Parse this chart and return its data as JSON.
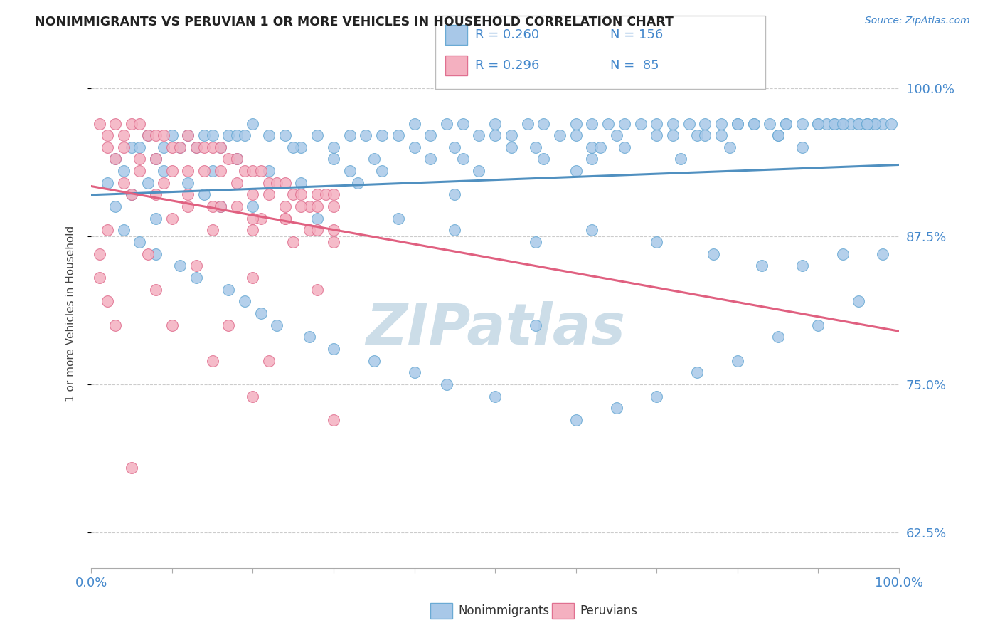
{
  "title": "NONIMMIGRANTS VS PERUVIAN 1 OR MORE VEHICLES IN HOUSEHOLD CORRELATION CHART",
  "source": "Source: ZipAtlas.com",
  "ylabel": "1 or more Vehicles in Household",
  "yticks": [
    "62.5%",
    "75.0%",
    "87.5%",
    "100.0%"
  ],
  "ytick_vals": [
    0.625,
    0.75,
    0.875,
    1.0
  ],
  "legend_blue_label": "Nonimmigrants",
  "legend_pink_label": "Peruvians",
  "R_blue": 0.26,
  "N_blue": 156,
  "R_pink": 0.296,
  "N_pink": 85,
  "blue_face": "#a8c8e8",
  "pink_face": "#f4b0c0",
  "blue_edge": "#6aaad4",
  "pink_edge": "#e07090",
  "blue_line": "#5090c0",
  "pink_line": "#e06080",
  "title_color": "#222222",
  "axis_color": "#4488cc",
  "watermark_color": "#ccdde8",
  "bg_color": "#ffffff",
  "blue_scatter_x": [
    0.02,
    0.03,
    0.04,
    0.05,
    0.06,
    0.07,
    0.08,
    0.09,
    0.1,
    0.11,
    0.12,
    0.13,
    0.14,
    0.15,
    0.16,
    0.17,
    0.18,
    0.19,
    0.2,
    0.22,
    0.24,
    0.26,
    0.28,
    0.3,
    0.32,
    0.34,
    0.36,
    0.38,
    0.4,
    0.42,
    0.44,
    0.46,
    0.48,
    0.5,
    0.52,
    0.54,
    0.56,
    0.58,
    0.6,
    0.62,
    0.64,
    0.66,
    0.68,
    0.7,
    0.72,
    0.74,
    0.76,
    0.78,
    0.8,
    0.82,
    0.84,
    0.86,
    0.88,
    0.9,
    0.91,
    0.92,
    0.93,
    0.94,
    0.95,
    0.96,
    0.97,
    0.98,
    0.99,
    0.03,
    0.05,
    0.07,
    0.09,
    0.12,
    0.15,
    0.18,
    0.25,
    0.3,
    0.35,
    0.4,
    0.45,
    0.5,
    0.55,
    0.6,
    0.65,
    0.7,
    0.75,
    0.8,
    0.85,
    0.9,
    0.95,
    0.97,
    0.04,
    0.08,
    0.14,
    0.22,
    0.32,
    0.42,
    0.52,
    0.62,
    0.72,
    0.82,
    0.92,
    0.06,
    0.16,
    0.26,
    0.36,
    0.46,
    0.56,
    0.66,
    0.76,
    0.86,
    0.96,
    0.08,
    0.2,
    0.33,
    0.48,
    0.63,
    0.78,
    0.93,
    0.11,
    0.28,
    0.45,
    0.62,
    0.79,
    0.96,
    0.13,
    0.38,
    0.6,
    0.85,
    0.17,
    0.45,
    0.73,
    0.19,
    0.55,
    0.88,
    0.21,
    0.62,
    0.23,
    0.7,
    0.27,
    0.77,
    0.3,
    0.83,
    0.35,
    0.88,
    0.4,
    0.93,
    0.44,
    0.98,
    0.5,
    0.55,
    0.6,
    0.65,
    0.7,
    0.75,
    0.8,
    0.85,
    0.9,
    0.95
  ],
  "blue_scatter_y": [
    0.92,
    0.94,
    0.93,
    0.95,
    0.95,
    0.96,
    0.94,
    0.95,
    0.96,
    0.95,
    0.96,
    0.95,
    0.96,
    0.96,
    0.95,
    0.96,
    0.96,
    0.96,
    0.97,
    0.96,
    0.96,
    0.95,
    0.96,
    0.95,
    0.96,
    0.96,
    0.96,
    0.96,
    0.97,
    0.96,
    0.97,
    0.97,
    0.96,
    0.97,
    0.96,
    0.97,
    0.97,
    0.96,
    0.97,
    0.97,
    0.97,
    0.97,
    0.97,
    0.97,
    0.97,
    0.97,
    0.97,
    0.97,
    0.97,
    0.97,
    0.97,
    0.97,
    0.97,
    0.97,
    0.97,
    0.97,
    0.97,
    0.97,
    0.97,
    0.97,
    0.97,
    0.97,
    0.97,
    0.9,
    0.91,
    0.92,
    0.93,
    0.92,
    0.93,
    0.94,
    0.95,
    0.94,
    0.94,
    0.95,
    0.95,
    0.96,
    0.95,
    0.96,
    0.96,
    0.96,
    0.96,
    0.97,
    0.96,
    0.97,
    0.97,
    0.97,
    0.88,
    0.89,
    0.91,
    0.93,
    0.93,
    0.94,
    0.95,
    0.95,
    0.96,
    0.97,
    0.97,
    0.87,
    0.9,
    0.92,
    0.93,
    0.94,
    0.94,
    0.95,
    0.96,
    0.97,
    0.97,
    0.86,
    0.9,
    0.92,
    0.93,
    0.95,
    0.96,
    0.97,
    0.85,
    0.89,
    0.91,
    0.94,
    0.95,
    0.97,
    0.84,
    0.89,
    0.93,
    0.96,
    0.83,
    0.88,
    0.94,
    0.82,
    0.87,
    0.95,
    0.81,
    0.88,
    0.8,
    0.87,
    0.79,
    0.86,
    0.78,
    0.85,
    0.77,
    0.85,
    0.76,
    0.86,
    0.75,
    0.86,
    0.74,
    0.8,
    0.72,
    0.73,
    0.74,
    0.76,
    0.77,
    0.79,
    0.8,
    0.82
  ],
  "pink_scatter_x": [
    0.01,
    0.02,
    0.03,
    0.04,
    0.05,
    0.06,
    0.07,
    0.08,
    0.09,
    0.1,
    0.11,
    0.12,
    0.13,
    0.14,
    0.15,
    0.16,
    0.17,
    0.18,
    0.19,
    0.2,
    0.21,
    0.22,
    0.23,
    0.24,
    0.25,
    0.26,
    0.27,
    0.28,
    0.29,
    0.3,
    0.02,
    0.04,
    0.06,
    0.08,
    0.1,
    0.12,
    0.14,
    0.16,
    0.18,
    0.2,
    0.22,
    0.24,
    0.26,
    0.28,
    0.3,
    0.03,
    0.06,
    0.09,
    0.12,
    0.15,
    0.18,
    0.21,
    0.24,
    0.27,
    0.3,
    0.04,
    0.08,
    0.12,
    0.16,
    0.2,
    0.24,
    0.28,
    0.05,
    0.1,
    0.15,
    0.2,
    0.25,
    0.3,
    0.02,
    0.07,
    0.13,
    0.2,
    0.28,
    0.01,
    0.08,
    0.17,
    0.01,
    0.1,
    0.22,
    0.02,
    0.15,
    0.3,
    0.03,
    0.2,
    0.05
  ],
  "pink_scatter_y": [
    0.97,
    0.96,
    0.97,
    0.96,
    0.97,
    0.97,
    0.96,
    0.96,
    0.96,
    0.95,
    0.95,
    0.96,
    0.95,
    0.95,
    0.95,
    0.95,
    0.94,
    0.94,
    0.93,
    0.93,
    0.93,
    0.92,
    0.92,
    0.92,
    0.91,
    0.91,
    0.9,
    0.91,
    0.91,
    0.91,
    0.95,
    0.95,
    0.94,
    0.94,
    0.93,
    0.93,
    0.93,
    0.93,
    0.92,
    0.91,
    0.91,
    0.9,
    0.9,
    0.9,
    0.9,
    0.94,
    0.93,
    0.92,
    0.91,
    0.9,
    0.9,
    0.89,
    0.89,
    0.88,
    0.88,
    0.92,
    0.91,
    0.9,
    0.9,
    0.89,
    0.89,
    0.88,
    0.91,
    0.89,
    0.88,
    0.88,
    0.87,
    0.87,
    0.88,
    0.86,
    0.85,
    0.84,
    0.83,
    0.86,
    0.83,
    0.8,
    0.84,
    0.8,
    0.77,
    0.82,
    0.77,
    0.72,
    0.8,
    0.74,
    0.68
  ]
}
